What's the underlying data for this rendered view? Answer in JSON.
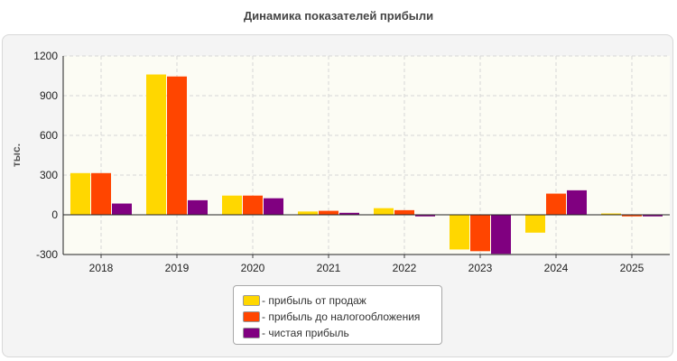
{
  "chart_data": {
    "type": "bar",
    "title": "Динамика показателей прибыли",
    "ylabel": "тыс.",
    "xlabel": "",
    "categories": [
      "2018",
      "2019",
      "2020",
      "2021",
      "2022",
      "2023",
      "2024",
      "2025"
    ],
    "ylim": [
      -300,
      1200
    ],
    "yticks": [
      -300,
      0,
      300,
      600,
      900,
      1200
    ],
    "grid": true,
    "legend_position": "bottom",
    "series": [
      {
        "name": "- прибыль от продаж",
        "color": "#ffd700",
        "values": [
          315,
          1060,
          145,
          25,
          50,
          -262,
          -135,
          10
        ]
      },
      {
        "name": "- прибыль до налогообложения",
        "color": "#ff4500",
        "values": [
          315,
          1045,
          145,
          30,
          35,
          -275,
          160,
          -12
        ]
      },
      {
        "name": "- чистая прибыль",
        "color": "#800080",
        "values": [
          85,
          110,
          125,
          15,
          -12,
          -295,
          185,
          -12
        ]
      }
    ]
  }
}
